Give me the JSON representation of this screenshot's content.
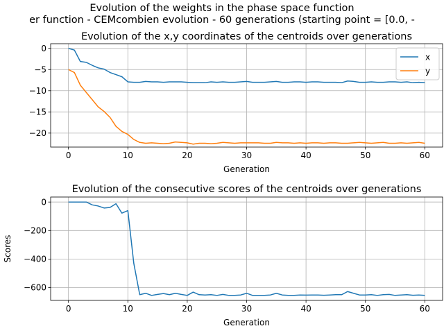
{
  "figure": {
    "suptitle_line1": "Evolution of the weights in the phase space  function",
    "suptitle_line2": "er function - CEMcombien evolution - 60 generations (starting point = [0.0, -"
  },
  "chart_data": [
    {
      "type": "line",
      "title": "Evolution of the x,y coordinates of the centroids over generations",
      "xlabel": "Generation",
      "ylabel": "",
      "xlim": [
        -3,
        63
      ],
      "ylim": [
        -23.3,
        1.1
      ],
      "xticks": [
        0,
        10,
        20,
        30,
        40,
        50,
        60
      ],
      "yticks": [
        0,
        -5,
        -10,
        -15,
        -20
      ],
      "grid": true,
      "legend_position": "upper right",
      "x": [
        0,
        1,
        2,
        3,
        4,
        5,
        6,
        7,
        8,
        9,
        10,
        11,
        12,
        13,
        14,
        15,
        16,
        17,
        18,
        19,
        20,
        21,
        22,
        23,
        24,
        25,
        26,
        27,
        28,
        29,
        30,
        31,
        32,
        33,
        34,
        35,
        36,
        37,
        38,
        39,
        40,
        41,
        42,
        43,
        44,
        45,
        46,
        47,
        48,
        49,
        50,
        51,
        52,
        53,
        54,
        55,
        56,
        57,
        58,
        59,
        60
      ],
      "series": [
        {
          "name": "x",
          "color": "#1f77b4",
          "values": [
            0,
            -0.4,
            -3.1,
            -3.3,
            -4.0,
            -4.6,
            -4.9,
            -5.7,
            -6.2,
            -6.7,
            -7.9,
            -8.0,
            -8.0,
            -7.8,
            -7.9,
            -7.9,
            -8.0,
            -7.9,
            -7.9,
            -7.9,
            -8.0,
            -8.1,
            -8.1,
            -8.1,
            -7.9,
            -8.0,
            -7.9,
            -8.0,
            -8.0,
            -7.9,
            -7.8,
            -8.0,
            -8.0,
            -8.0,
            -7.9,
            -7.8,
            -8.0,
            -8.0,
            -7.9,
            -7.9,
            -8.0,
            -7.9,
            -7.9,
            -8.0,
            -8.0,
            -8.0,
            -8.1,
            -7.7,
            -7.8,
            -8.0,
            -8.0,
            -7.9,
            -8.0,
            -8.0,
            -7.9,
            -7.9,
            -8.0,
            -7.9,
            -8.1,
            -8.0,
            -8.1
          ]
        },
        {
          "name": "y",
          "color": "#ff7f0e",
          "values": [
            -5.0,
            -5.7,
            -8.7,
            -10.4,
            -12.1,
            -13.8,
            -14.9,
            -16.3,
            -18.4,
            -19.6,
            -20.3,
            -21.5,
            -22.2,
            -22.4,
            -22.3,
            -22.4,
            -22.5,
            -22.4,
            -22.1,
            -22.2,
            -22.3,
            -22.6,
            -22.4,
            -22.4,
            -22.5,
            -22.4,
            -22.2,
            -22.3,
            -22.4,
            -22.3,
            -22.3,
            -22.3,
            -22.3,
            -22.4,
            -22.4,
            -22.2,
            -22.3,
            -22.3,
            -22.4,
            -22.3,
            -22.4,
            -22.3,
            -22.3,
            -22.4,
            -22.3,
            -22.3,
            -22.4,
            -22.4,
            -22.3,
            -22.2,
            -22.3,
            -22.4,
            -22.3,
            -22.2,
            -22.4,
            -22.4,
            -22.3,
            -22.4,
            -22.3,
            -22.2,
            -22.4
          ]
        }
      ]
    },
    {
      "type": "line",
      "title": "Evolution of the consecutive scores of the centroids over generations",
      "xlabel": "Generation",
      "ylabel": "Scores",
      "xlim": [
        -3,
        63
      ],
      "ylim": [
        -690,
        35
      ],
      "xticks": [
        0,
        10,
        20,
        30,
        40,
        50,
        60
      ],
      "yticks": [
        0,
        -200,
        -400,
        -600
      ],
      "grid": true,
      "x": [
        0,
        1,
        2,
        3,
        4,
        5,
        6,
        7,
        8,
        9,
        10,
        11,
        12,
        13,
        14,
        15,
        16,
        17,
        18,
        19,
        20,
        21,
        22,
        23,
        24,
        25,
        26,
        27,
        28,
        29,
        30,
        31,
        32,
        33,
        34,
        35,
        36,
        37,
        38,
        39,
        40,
        41,
        42,
        43,
        44,
        45,
        46,
        47,
        48,
        49,
        50,
        51,
        52,
        53,
        54,
        55,
        56,
        57,
        58,
        59,
        60
      ],
      "series": [
        {
          "color": "#1f77b4",
          "values": [
            0,
            0,
            0,
            0,
            -20,
            -28,
            -42,
            -38,
            -12,
            -78,
            -60,
            -430,
            -650,
            -640,
            -655,
            -648,
            -642,
            -650,
            -640,
            -648,
            -655,
            -632,
            -650,
            -652,
            -650,
            -655,
            -648,
            -655,
            -655,
            -652,
            -640,
            -655,
            -655,
            -655,
            -652,
            -640,
            -652,
            -655,
            -655,
            -652,
            -653,
            -652,
            -652,
            -654,
            -652,
            -650,
            -650,
            -628,
            -640,
            -652,
            -652,
            -650,
            -655,
            -650,
            -648,
            -655,
            -652,
            -650,
            -654,
            -652,
            -655
          ]
        }
      ]
    }
  ]
}
